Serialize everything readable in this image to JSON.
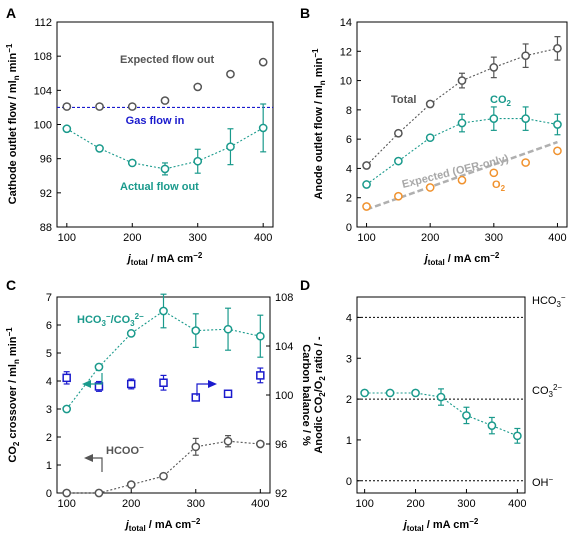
{
  "colors": {
    "gray": "#555555",
    "teal": "#1a9a8c",
    "blue": "#1a1acd",
    "orange": "#f0922e",
    "lightgray": "#b0b0b0"
  },
  "panels": {
    "A": "A",
    "B": "B",
    "C": "C",
    "D": "D"
  },
  "chart_data": [
    {
      "panel": "A",
      "type": "scatter",
      "xlabel": "j_total / mA cm^-2",
      "ylabel": "Cathode outlet flow / ml_n min^-1",
      "xlim": [
        85,
        415
      ],
      "ylim": [
        88,
        112
      ],
      "xticks": [
        "100",
        "200",
        "300",
        "400"
      ],
      "yticks": [
        "88",
        "92",
        "96",
        "100",
        "104",
        "108",
        "112"
      ],
      "series": [
        {
          "name": "Expected flow out",
          "color": "#555555",
          "x": [
            100,
            150,
            200,
            250,
            300,
            350,
            400
          ],
          "y": [
            102.1,
            102.1,
            102.1,
            102.8,
            104.4,
            105.9,
            107.3
          ],
          "err": [
            0,
            0,
            0,
            0,
            0,
            0,
            0
          ]
        },
        {
          "name": "Actual flow out",
          "color": "#1a9a8c",
          "x": [
            100,
            150,
            200,
            250,
            300,
            350,
            400
          ],
          "y": [
            99.5,
            97.2,
            95.5,
            94.8,
            95.7,
            97.4,
            99.6
          ],
          "err": [
            0,
            0,
            0,
            0.7,
            1.4,
            2.1,
            2.8
          ]
        }
      ],
      "hline": {
        "y": 102,
        "label": "Gas flow in",
        "color": "#1a1acd"
      }
    },
    {
      "panel": "B",
      "type": "scatter",
      "xlabel": "j_total / mA cm^-2",
      "ylabel": "Anode outlet flow / ml_n min^-1",
      "xlim": [
        85,
        415
      ],
      "ylim": [
        0,
        14
      ],
      "xticks": [
        "100",
        "200",
        "300",
        "400"
      ],
      "yticks": [
        "0",
        "2",
        "4",
        "6",
        "8",
        "10",
        "12",
        "14"
      ],
      "series": [
        {
          "name": "Total",
          "color": "#555555",
          "x": [
            100,
            150,
            200,
            250,
            300,
            350,
            400
          ],
          "y": [
            4.2,
            6.4,
            8.4,
            10.0,
            10.9,
            11.7,
            12.2
          ],
          "err": [
            0,
            0,
            0,
            0.5,
            0.7,
            0.8,
            0.8
          ]
        },
        {
          "name": "CO2",
          "color": "#1a9a8c",
          "x": [
            100,
            150,
            200,
            250,
            300,
            350,
            400
          ],
          "y": [
            2.9,
            4.5,
            6.1,
            7.1,
            7.4,
            7.4,
            7.0
          ],
          "err": [
            0,
            0,
            0,
            0.6,
            0.8,
            0.8,
            0.7
          ]
        },
        {
          "name": "O2",
          "color": "#f0922e",
          "x": [
            100,
            150,
            200,
            250,
            300,
            350,
            400
          ],
          "y": [
            1.4,
            2.1,
            2.7,
            3.2,
            3.7,
            4.4,
            5.2
          ],
          "err": [
            0,
            0,
            0,
            0,
            0,
            0,
            0
          ]
        }
      ],
      "expected_line": {
        "label": "Expected (OER-only)",
        "x": [
          100,
          400
        ],
        "y": [
          1.2,
          5.8
        ]
      }
    },
    {
      "panel": "C",
      "type": "scatter",
      "xlabel": "j_total / mA cm^-2",
      "ylabel": "CO2 crossover / ml_n min^-1",
      "y2label": "Carbon balance / %",
      "xlim": [
        85,
        415
      ],
      "ylim": [
        0,
        7
      ],
      "y2lim": [
        92,
        108
      ],
      "xticks": [
        "100",
        "200",
        "300",
        "400"
      ],
      "yticks": [
        "0",
        "1",
        "2",
        "3",
        "4",
        "5",
        "6",
        "7"
      ],
      "y2ticks": [
        "92",
        "96",
        "100",
        "104",
        "108"
      ],
      "series": [
        {
          "name": "HCO3-/CO3 2-",
          "color": "#1a9a8c",
          "x": [
            100,
            150,
            200,
            250,
            300,
            350,
            400
          ],
          "y": [
            3.0,
            4.5,
            5.7,
            6.5,
            5.8,
            5.85,
            5.6
          ],
          "err": [
            0,
            0,
            0,
            0.6,
            0.6,
            0.75,
            0.75
          ]
        },
        {
          "name": "HCOO-",
          "color": "#555555",
          "x": [
            100,
            150,
            200,
            250,
            300,
            350,
            400
          ],
          "y": [
            0.0,
            0.0,
            0.3,
            0.6,
            1.65,
            1.85,
            1.75
          ],
          "err": [
            0,
            0,
            0,
            0,
            0.3,
            0.2,
            0
          ]
        },
        {
          "name": "Carbon balance",
          "color": "#1a1acd",
          "axis": "right",
          "x": [
            100,
            150,
            200,
            250,
            300,
            350,
            400
          ],
          "y": [
            101.4,
            100.7,
            100.9,
            101.0,
            99.8,
            100.1,
            101.6
          ],
          "err": [
            0.5,
            0.4,
            0.4,
            0.6,
            0,
            0,
            0.6
          ]
        }
      ]
    },
    {
      "panel": "D",
      "type": "scatter",
      "xlabel": "j_total / mA cm^-2",
      "ylabel": "Anodic CO2/O2 ratio / -",
      "xlim": [
        85,
        415
      ],
      "ylim": [
        -0.3,
        4.5
      ],
      "xticks": [
        "100",
        "200",
        "300",
        "400"
      ],
      "yticks": [
        "0",
        "1",
        "2",
        "3",
        "4"
      ],
      "series": [
        {
          "name": "CO2/O2 ratio",
          "color": "#1a9a8c",
          "x": [
            100,
            150,
            200,
            250,
            300,
            350,
            400
          ],
          "y": [
            2.15,
            2.15,
            2.15,
            2.05,
            1.6,
            1.35,
            1.1
          ],
          "err": [
            0,
            0,
            0,
            0.2,
            0.2,
            0.2,
            0.18
          ]
        }
      ],
      "reference_lines": [
        {
          "y": 4,
          "label": "HCO3-"
        },
        {
          "y": 2,
          "label": "CO3 2-"
        },
        {
          "y": 0,
          "label": "OH-"
        }
      ]
    }
  ],
  "texts": {
    "xlabel_main": "j",
    "xlabel_sub": "total",
    "xlabel_rest": " / mA cm",
    "xlabel_sup": "−2",
    "A_ylabel_main": "Cathode outlet flow / ml",
    "A_ylabel_sub": "n",
    "A_ylabel_rest": " min",
    "A_ylabel_sup": "−1",
    "A_expected": "Expected flow out",
    "A_gas": "Gas flow in",
    "A_actual": "Actual flow out",
    "B_ylabel_main": "Anode outlet flow / ml",
    "B_ylabel_sub": "n",
    "B_ylabel_rest": " min",
    "B_ylabel_sup": "−1",
    "B_total": "Total",
    "B_co2": "CO",
    "B_co2_sub": "2",
    "B_expected": "Expected (OER-only)",
    "B_o2": "O",
    "B_o2_sub": "2",
    "C_ylabel_a": "CO",
    "C_ylabel_sub1": "2",
    "C_ylabel_b": " crossover / ml",
    "C_ylabel_sub2": "n",
    "C_ylabel_c": " min",
    "C_ylabel_sup": "−1",
    "C_y2label": "Carbon balance / %",
    "C_hco3": "HCO",
    "C_hco3_sub": "3",
    "C_hco3_sup": "−",
    "C_slash": "/CO",
    "C_co3_sub": "3",
    "C_co3_sup": "2−",
    "C_hcoo": "HCOO",
    "C_hcoo_sup": "−",
    "D_ylabel_a": "Anodic CO",
    "D_ylabel_sub1": "2",
    "D_ylabel_b": "/O",
    "D_ylabel_sub2": "2",
    "D_ylabel_c": " ratio / -",
    "D_ref1": "HCO",
    "D_ref1_sub": "3",
    "D_ref1_sup": "−",
    "D_ref2": "CO",
    "D_ref2_sub": "3",
    "D_ref2_sup": "2−",
    "D_ref3": "OH",
    "D_ref3_sup": "−"
  }
}
